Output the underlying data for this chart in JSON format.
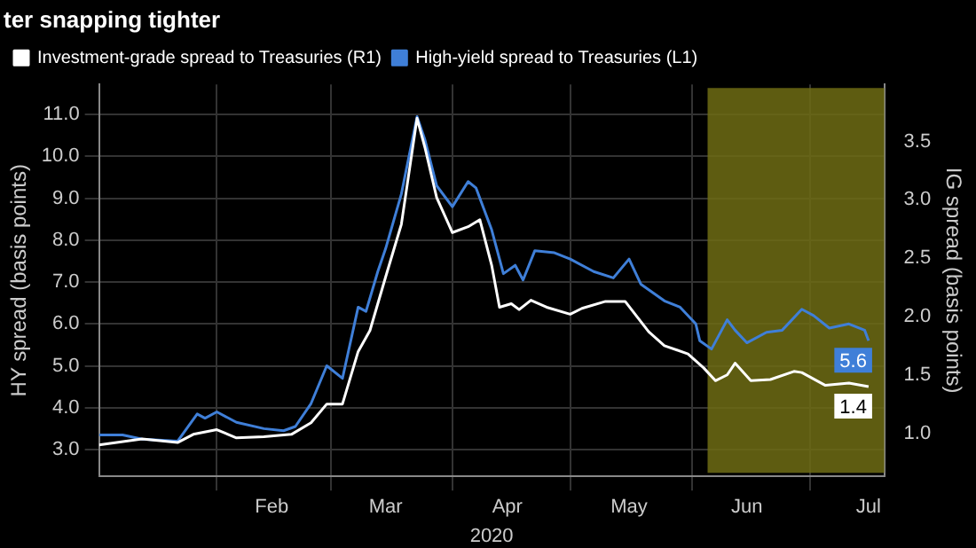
{
  "chart_data": {
    "type": "line",
    "title": "ter snapping tighter",
    "xlabel": "2020",
    "ylabel": "HY spread (basis points)",
    "y2label": "IG spread (basis points)",
    "legend": "top left",
    "grid": true,
    "xlim": [
      "2020-01-02",
      "2020-07-20"
    ],
    "xticks": [
      {
        "value": "2020-02-01",
        "label": null
      },
      {
        "value": "2020-02-15",
        "label": "Feb"
      },
      {
        "value": "2020-03-01",
        "label": null
      },
      {
        "value": "2020-03-15",
        "label": "Mar"
      },
      {
        "value": "2020-04-01",
        "label": null
      },
      {
        "value": "2020-04-15",
        "label": "Apr"
      },
      {
        "value": "2020-05-01",
        "label": null
      },
      {
        "value": "2020-05-16",
        "label": "May"
      },
      {
        "value": "2020-06-01",
        "label": null
      },
      {
        "value": "2020-06-15",
        "label": "Jun"
      },
      {
        "value": "2020-07-01",
        "label": null
      },
      {
        "value": "2020-07-16",
        "label": "Jul"
      }
    ],
    "ylim": [
      2.36,
      11.72
    ],
    "yticks": [
      {
        "value": 3,
        "label": "3.0"
      },
      {
        "value": 4,
        "label": "4.0"
      },
      {
        "value": 5,
        "label": "5.0"
      },
      {
        "value": 6,
        "label": "6.0"
      },
      {
        "value": 7,
        "label": "7.0"
      },
      {
        "value": 8,
        "label": "8.0"
      },
      {
        "value": 9,
        "label": "9.0"
      },
      {
        "value": 10,
        "label": "10.0"
      },
      {
        "value": 11,
        "label": "11.0"
      }
    ],
    "y2lim": [
      0.63,
      3.99
    ],
    "y2ticks": [
      {
        "value": 1,
        "label": "1.0"
      },
      {
        "value": 1.5,
        "label": "1.5"
      },
      {
        "value": 2,
        "label": "2.0"
      },
      {
        "value": 2.5,
        "label": "2.5"
      },
      {
        "value": 3,
        "label": "3.0"
      },
      {
        "value": 3.5,
        "label": "3.5"
      }
    ],
    "bands": [
      {
        "axis": "x",
        "from": "2020-06-05",
        "to": "2020-07-20",
        "color": "#6e6c14"
      }
    ],
    "series": [
      {
        "name": "Investment-grade spread to Treasuries (R1)",
        "color": "#ffffff",
        "axis": "y2",
        "x": [
          "2020-01-02",
          "2020-01-13",
          "2020-01-22",
          "2020-01-26",
          "2020-02-01",
          "2020-02-06",
          "2020-02-13",
          "2020-02-20",
          "2020-02-25",
          "2020-02-29",
          "2020-03-04",
          "2020-03-08",
          "2020-03-11",
          "2020-03-15",
          "2020-03-19",
          "2020-03-23",
          "2020-03-25",
          "2020-03-28",
          "2020-04-01",
          "2020-04-05",
          "2020-04-08",
          "2020-04-11",
          "2020-04-13",
          "2020-04-16",
          "2020-04-18",
          "2020-04-21",
          "2020-04-25",
          "2020-05-01",
          "2020-05-04",
          "2020-05-10",
          "2020-05-15",
          "2020-05-21",
          "2020-05-25",
          "2020-05-31",
          "2020-06-04",
          "2020-06-07",
          "2020-06-10",
          "2020-06-12",
          "2020-06-16",
          "2020-06-21",
          "2020-06-27",
          "2020-06-29",
          "2020-07-05",
          "2020-07-11",
          "2020-07-16"
        ],
        "values": [
          0.9,
          0.95,
          0.92,
          0.99,
          1.03,
          0.96,
          0.97,
          0.99,
          1.09,
          1.25,
          1.25,
          1.7,
          1.88,
          2.34,
          2.79,
          3.7,
          3.45,
          3.02,
          2.72,
          2.77,
          2.83,
          2.44,
          2.08,
          2.11,
          2.06,
          2.14,
          2.08,
          2.02,
          2.07,
          2.13,
          2.13,
          1.87,
          1.75,
          1.68,
          1.56,
          1.45,
          1.5,
          1.6,
          1.45,
          1.46,
          1.53,
          1.52,
          1.41,
          1.43,
          1.4
        ],
        "value_labels": [
          null,
          null,
          null,
          null,
          null,
          null,
          null,
          null,
          null,
          null,
          null,
          null,
          null,
          null,
          null,
          null,
          null,
          null,
          null,
          null,
          null,
          null,
          null,
          null,
          null,
          null,
          null,
          null,
          null,
          null,
          null,
          null,
          null,
          null,
          null,
          null,
          null,
          null,
          null,
          null,
          null,
          null,
          null,
          null,
          "1.4"
        ]
      },
      {
        "name": "High-yield spread to Treasuries (L1)",
        "color": "#3f7fd8",
        "axis": "y",
        "x": [
          "2020-01-02",
          "2020-01-08",
          "2020-01-13",
          "2020-01-22",
          "2020-01-27",
          "2020-01-29",
          "2020-02-01",
          "2020-02-06",
          "2020-02-13",
          "2020-02-18",
          "2020-02-21",
          "2020-02-25",
          "2020-02-29",
          "2020-03-04",
          "2020-03-08",
          "2020-03-10",
          "2020-03-13",
          "2020-03-15",
          "2020-03-19",
          "2020-03-23",
          "2020-03-25",
          "2020-03-28",
          "2020-04-01",
          "2020-04-05",
          "2020-04-07",
          "2020-04-11",
          "2020-04-14",
          "2020-04-17",
          "2020-04-19",
          "2020-04-22",
          "2020-04-27",
          "2020-05-01",
          "2020-05-07",
          "2020-05-12",
          "2020-05-16",
          "2020-05-19",
          "2020-05-25",
          "2020-05-29",
          "2020-06-02",
          "2020-06-03",
          "2020-06-06",
          "2020-06-10",
          "2020-06-12",
          "2020-06-15",
          "2020-06-20",
          "2020-06-24",
          "2020-06-29",
          "2020-07-02",
          "2020-07-06",
          "2020-07-11",
          "2020-07-15",
          "2020-07-16"
        ],
        "values": [
          3.35,
          3.35,
          3.25,
          3.2,
          3.85,
          3.75,
          3.9,
          3.65,
          3.5,
          3.45,
          3.55,
          4.1,
          5.0,
          4.7,
          6.4,
          6.3,
          7.25,
          7.8,
          9.1,
          10.95,
          10.4,
          9.3,
          8.8,
          9.4,
          9.25,
          8.25,
          7.2,
          7.4,
          7.05,
          7.75,
          7.7,
          7.55,
          7.25,
          7.1,
          7.55,
          6.95,
          6.55,
          6.4,
          6.0,
          5.6,
          5.4,
          6.1,
          5.85,
          5.55,
          5.8,
          5.85,
          6.35,
          6.2,
          5.9,
          6.0,
          5.85,
          5.6
        ],
        "value_labels": [
          null,
          null,
          null,
          null,
          null,
          null,
          null,
          null,
          null,
          null,
          null,
          null,
          null,
          null,
          null,
          null,
          null,
          null,
          null,
          null,
          null,
          null,
          null,
          null,
          null,
          null,
          null,
          null,
          null,
          null,
          null,
          null,
          null,
          null,
          null,
          null,
          null,
          null,
          null,
          null,
          null,
          null,
          null,
          null,
          null,
          null,
          null,
          null,
          null,
          null,
          null,
          "5.6"
        ]
      }
    ]
  }
}
